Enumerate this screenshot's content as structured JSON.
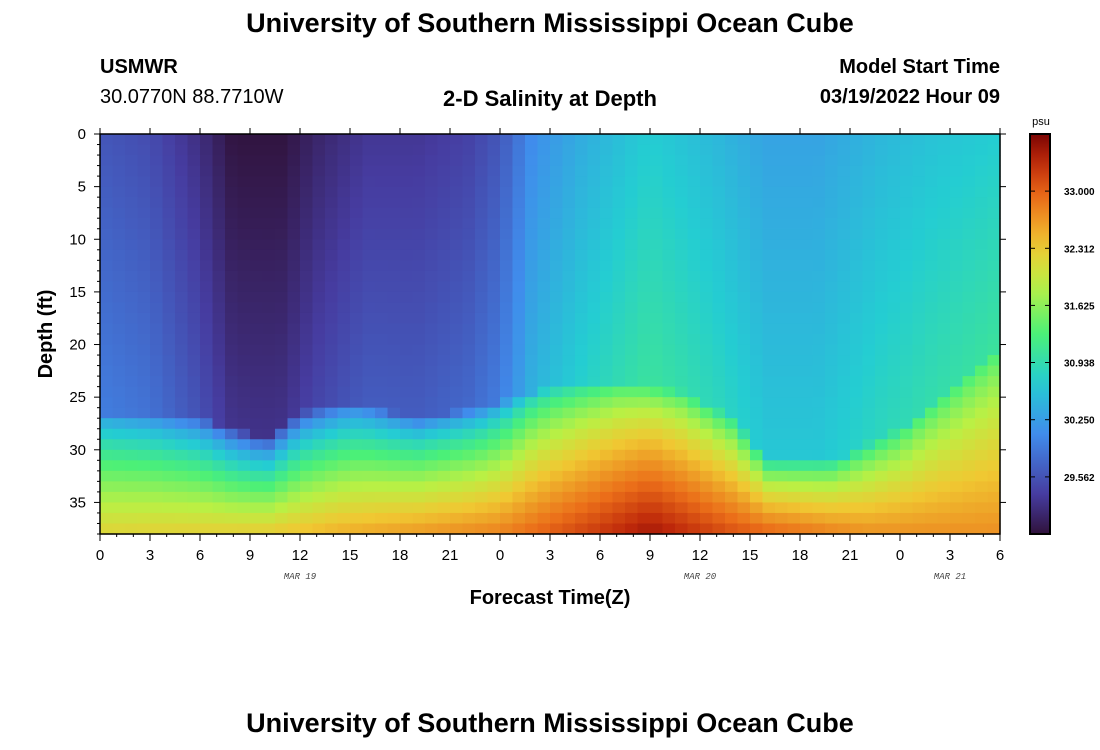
{
  "header": {
    "title": "University of Southern Mississippi Ocean Cube",
    "station": "USMWR",
    "coords": "30.0770N  88.7710W",
    "plot_title": "2-D Salinity at Depth",
    "start_label": "Model Start Time",
    "start_value": "03/19/2022 Hour 09"
  },
  "footer": {
    "title": "University of Southern Mississippi Ocean Cube"
  },
  "chart_data": {
    "type": "heatmap",
    "title": "2-D Salinity at Depth",
    "xlabel": "Forecast Time(Z)",
    "ylabel": "Depth (ft)",
    "x_ticks": [
      "0",
      "3",
      "6",
      "9",
      "12",
      "15",
      "18",
      "21",
      "0",
      "3",
      "6",
      "9",
      "12",
      "15",
      "18",
      "21",
      "0",
      "3",
      "6"
    ],
    "x_range_hours": [
      0,
      54
    ],
    "date_labels": [
      {
        "label": "MAR 19",
        "hour": 12
      },
      {
        "label": "MAR 20",
        "hour": 36
      },
      {
        "label": "MAR 21",
        "hour": 51
      }
    ],
    "y_ticks": [
      "0",
      "5",
      "10",
      "15",
      "20",
      "25",
      "30",
      "35"
    ],
    "ylim": [
      0,
      38
    ],
    "y_inverted": true,
    "colorbar": {
      "unit": "psu",
      "range": [
        28.875,
        33.687
      ],
      "tick_values": [
        33.0,
        32.312,
        31.625,
        30.938,
        30.25,
        29.562
      ],
      "tick_labels": [
        "33.000",
        "32.312",
        "31.625",
        "30.938",
        "30.250",
        "29.562"
      ]
    },
    "surface_salinity_psu": [
      {
        "hour": 0,
        "value": 29.6
      },
      {
        "hour": 3,
        "value": 29.5
      },
      {
        "hour": 6,
        "value": 29.2
      },
      {
        "hour": 8,
        "value": 28.9
      },
      {
        "hour": 11,
        "value": 28.9
      },
      {
        "hour": 13,
        "value": 29.1
      },
      {
        "hour": 16,
        "value": 29.3
      },
      {
        "hour": 19,
        "value": 29.3
      },
      {
        "hour": 22,
        "value": 29.4
      },
      {
        "hour": 24,
        "value": 29.6
      },
      {
        "hour": 26,
        "value": 30.1
      },
      {
        "hour": 29,
        "value": 30.4
      },
      {
        "hour": 33,
        "value": 30.7
      },
      {
        "hour": 37,
        "value": 30.5
      },
      {
        "hour": 40,
        "value": 30.3
      },
      {
        "hour": 43,
        "value": 30.3
      },
      {
        "hour": 47,
        "value": 30.5
      },
      {
        "hour": 50,
        "value": 30.6
      },
      {
        "hour": 54,
        "value": 30.7
      }
    ],
    "mixed_layer_depth_ft": [
      {
        "hour": 0,
        "value": 26.5
      },
      {
        "hour": 6,
        "value": 27
      },
      {
        "hour": 10,
        "value": 29
      },
      {
        "hour": 12,
        "value": 26.5
      },
      {
        "hour": 15,
        "value": 25.5
      },
      {
        "hour": 19,
        "value": 27
      },
      {
        "hour": 23,
        "value": 26
      },
      {
        "hour": 27,
        "value": 24
      },
      {
        "hour": 31,
        "value": 23.5
      },
      {
        "hour": 35,
        "value": 24.5
      },
      {
        "hour": 38,
        "value": 27
      },
      {
        "hour": 40,
        "value": 31
      },
      {
        "hour": 44,
        "value": 31
      },
      {
        "hour": 48,
        "value": 28
      },
      {
        "hour": 51,
        "value": 24
      },
      {
        "hour": 54,
        "value": 20
      }
    ],
    "bottom_salinity_psu": [
      {
        "hour": 0,
        "value": 32.2
      },
      {
        "hour": 10,
        "value": 32.3
      },
      {
        "hour": 14,
        "value": 32.5
      },
      {
        "hour": 24,
        "value": 32.8
      },
      {
        "hour": 33,
        "value": 33.5
      },
      {
        "hour": 38,
        "value": 33.1
      },
      {
        "hour": 46,
        "value": 32.7
      },
      {
        "hour": 54,
        "value": 32.7
      }
    ],
    "colors": {
      "low": "#2b1a4a",
      "blue": "#3f8ee5",
      "green": "#3fe87a",
      "yellow_green": "#b8f044",
      "orange": "#f07f1f",
      "high": "#7a0403"
    }
  }
}
